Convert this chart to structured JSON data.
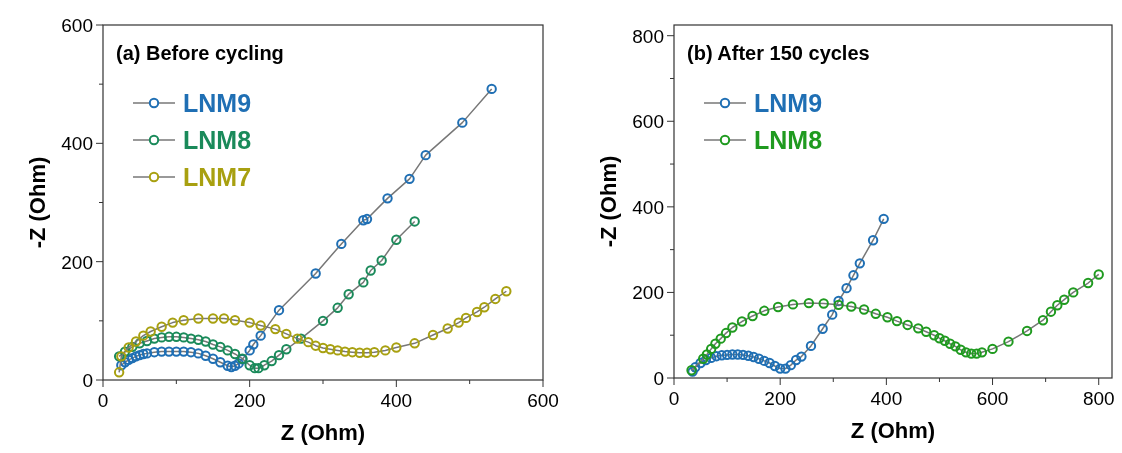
{
  "chart_data": [
    {
      "type": "line",
      "title": "(a) Before cycling",
      "xlabel": "Z (Ohm)",
      "ylabel": "-Z (Ohm)",
      "xlim": [
        0,
        600
      ],
      "ylim": [
        0,
        600
      ],
      "xticks": [
        0,
        {
          "value": 100,
          "label": null
        },
        200,
        {
          "value": 300,
          "label": null
        },
        400,
        {
          "value": 500,
          "label": null
        },
        600
      ],
      "yticks": [
        0,
        {
          "value": 100,
          "label": null
        },
        200,
        {
          "value": 300,
          "label": null
        },
        400,
        {
          "value": 500,
          "label": null
        },
        600
      ],
      "marker": "circle",
      "legend": "top left",
      "grid": false,
      "series": [
        {
          "name": "LNM9",
          "color": "#1f6fb4",
          "x": [
            25,
            30,
            35,
            40,
            45,
            50,
            55,
            60,
            70,
            80,
            90,
            100,
            110,
            120,
            130,
            140,
            150,
            160,
            170,
            175,
            180,
            185,
            190,
            200,
            205,
            215,
            240,
            290,
            325,
            355,
            360,
            388,
            418,
            440,
            490,
            530
          ],
          "values": [
            25,
            30,
            34,
            37,
            40,
            42,
            44,
            45,
            47,
            48,
            48,
            48,
            48,
            47,
            45,
            41,
            36,
            30,
            24,
            22,
            24,
            28,
            35,
            50,
            60,
            75,
            118,
            180,
            230,
            270,
            272,
            307,
            340,
            380,
            435,
            492
          ]
        },
        {
          "name": "LNM8",
          "color": "#1a8a5a",
          "x": [
            22,
            30,
            40,
            50,
            60,
            70,
            80,
            90,
            100,
            110,
            120,
            130,
            140,
            150,
            160,
            170,
            180,
            190,
            200,
            207,
            212,
            220,
            230,
            240,
            250,
            270,
            300,
            320,
            335,
            355,
            365,
            380,
            400,
            425
          ],
          "values": [
            40,
            48,
            56,
            62,
            66,
            70,
            72,
            73,
            73,
            72,
            70,
            68,
            65,
            60,
            56,
            50,
            44,
            36,
            25,
            20,
            20,
            25,
            32,
            42,
            52,
            70,
            100,
            122,
            145,
            165,
            185,
            202,
            237,
            268
          ]
        },
        {
          "name": "LNM7",
          "color": "#a8a010",
          "x": [
            22,
            25,
            35,
            45,
            55,
            65,
            80,
            95,
            110,
            130,
            150,
            165,
            180,
            200,
            215,
            235,
            250,
            265,
            280,
            290,
            300,
            310,
            320,
            330,
            340,
            350,
            360,
            370,
            385,
            400,
            425,
            450,
            470,
            485,
            495,
            510,
            520,
            535,
            550
          ],
          "values": [
            13,
            40,
            55,
            65,
            75,
            82,
            90,
            97,
            101,
            104,
            104,
            104,
            101,
            97,
            92,
            86,
            78,
            70,
            64,
            58,
            54,
            52,
            50,
            48,
            47,
            46,
            46,
            47,
            50,
            55,
            62,
            76,
            87,
            97,
            105,
            115,
            123,
            137,
            150
          ]
        }
      ]
    },
    {
      "type": "line",
      "title": "(b) After 150 cycles",
      "xlabel": "Z (Ohm)",
      "ylabel": "-Z (Ohm)",
      "xlim": [
        0,
        825
      ],
      "ylim": [
        0,
        825
      ],
      "xticks": [
        0,
        {
          "value": 100,
          "label": null
        },
        200,
        {
          "value": 300,
          "label": null
        },
        400,
        {
          "value": 500,
          "label": null
        },
        600,
        {
          "value": 700,
          "label": null
        },
        800
      ],
      "yticks": [
        0,
        {
          "value": 100,
          "label": null
        },
        200,
        {
          "value": 300,
          "label": null
        },
        400,
        {
          "value": 500,
          "label": null
        },
        600,
        {
          "value": 700,
          "label": null
        },
        800
      ],
      "marker": "circle",
      "legend": "top left",
      "grid": false,
      "series": [
        {
          "name": "LNM9",
          "color": "#1f6fb4",
          "x": [
            35,
            40,
            50,
            60,
            70,
            80,
            90,
            100,
            110,
            120,
            130,
            140,
            150,
            160,
            170,
            180,
            190,
            200,
            210,
            220,
            230,
            240,
            258,
            280,
            298,
            310,
            325,
            338,
            350,
            375,
            395
          ],
          "values": [
            15,
            25,
            35,
            42,
            47,
            51,
            53,
            54,
            55,
            55,
            54,
            52,
            49,
            45,
            40,
            35,
            28,
            22,
            22,
            30,
            42,
            50,
            75,
            115,
            148,
            180,
            210,
            240,
            268,
            322,
            372
          ]
        },
        {
          "name": "LNM8",
          "color": "#1f9a1f",
          "x": [
            33,
            55,
            62,
            70,
            78,
            88,
            98,
            110,
            128,
            148,
            170,
            196,
            224,
            254,
            282,
            310,
            334,
            358,
            380,
            402,
            420,
            440,
            460,
            475,
            490,
            500,
            510,
            520,
            530,
            540,
            550,
            560,
            570,
            580,
            600,
            630,
            665,
            695,
            710,
            722,
            735,
            752,
            780,
            800
          ],
          "values": [
            18,
            45,
            55,
            68,
            80,
            92,
            105,
            118,
            132,
            145,
            157,
            166,
            172,
            175,
            174,
            171,
            167,
            160,
            150,
            142,
            133,
            124,
            116,
            108,
            100,
            93,
            87,
            80,
            74,
            66,
            60,
            57,
            57,
            60,
            68,
            85,
            110,
            135,
            155,
            170,
            183,
            200,
            222,
            242
          ]
        }
      ]
    }
  ]
}
